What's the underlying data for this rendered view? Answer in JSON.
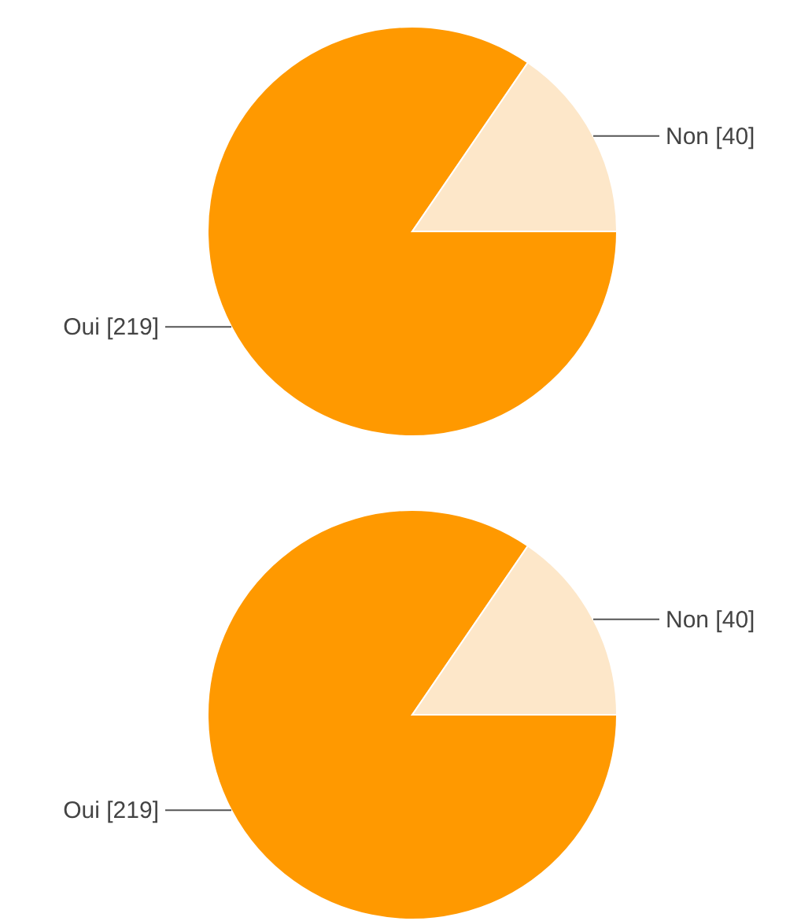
{
  "chart_data": [
    {
      "type": "pie",
      "categories": [
        "Oui",
        "Non"
      ],
      "values": [
        219,
        40
      ],
      "colors": [
        "#ff9900",
        "#fde7c9"
      ],
      "value_labels": [
        "[219]",
        "[40]"
      ]
    },
    {
      "type": "pie",
      "categories": [
        "Oui",
        "Non"
      ],
      "values": [
        219,
        40
      ],
      "colors": [
        "#ff9900",
        "#fde7c9"
      ],
      "value_labels": [
        "[219]",
        "[40]"
      ]
    }
  ]
}
